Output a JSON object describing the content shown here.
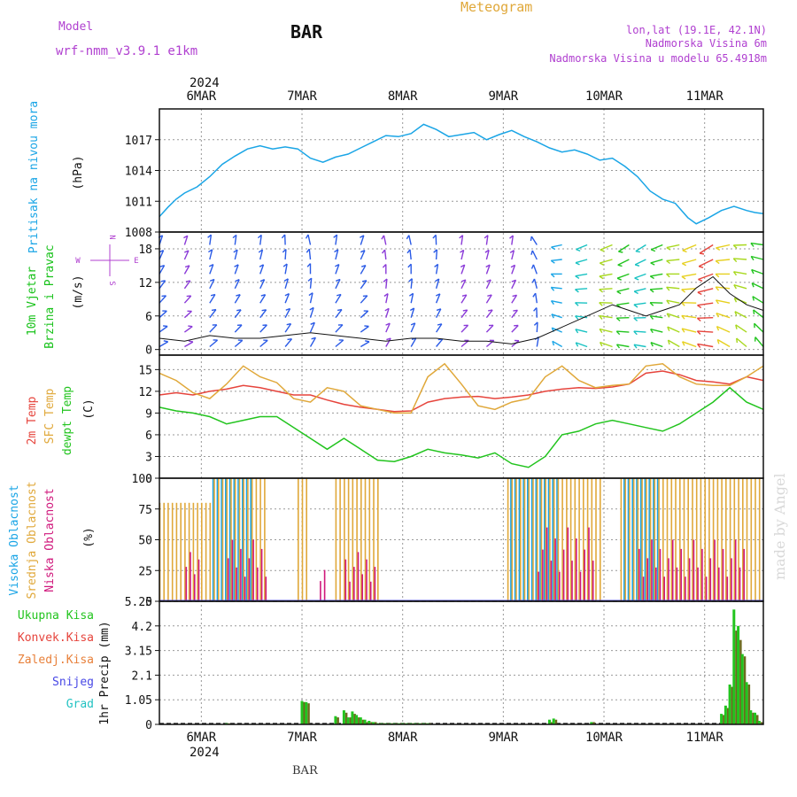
{
  "header": {
    "model_label": "Model",
    "model_name": "wrf-nmm_v3.9.1 e1km",
    "station": "BAR",
    "product": "Meteogram",
    "lonlat": "lon,lat (19.1E, 42.1N)",
    "elevation": "Nadmorska Visina 6m",
    "model_elevation": "Nadmorska Visina u modelu 65.4918m",
    "footer_station": "BAR",
    "watermark": "made by Angel"
  },
  "colors": {
    "pressure": "#1aa5e6",
    "wind_label": "#18c21a",
    "wind_dir_label": "#b040d0",
    "temp2m": "#e6443c",
    "sfc": "#e0a83a",
    "dewpt": "#22c41e",
    "cloud_high": "#1aa5e6",
    "cloud_mid": "#e0a83a",
    "cloud_low": "#d0187c",
    "precip_total": "#22c41e",
    "precip_conv": "#e6443c",
    "precip_frz": "#e8803a",
    "precip_snow": "#4848e6",
    "precip_grad": "#22c2c2",
    "purple": "#b040d0",
    "orange": "#e0a83a"
  },
  "chart_data": [
    {
      "type": "line",
      "panel": "pressure",
      "ylabel_lines": [
        "Pritisak na nivou mora",
        "(hPa)"
      ],
      "ylim": [
        1008,
        1020
      ],
      "yticks": [
        1008,
        1011,
        1014,
        1017
      ],
      "xlim": [
        0,
        144
      ],
      "x_tick_labels_top": [
        "6MAR",
        "7MAR",
        "8MAR",
        "9MAR",
        "10MAR",
        "11MAR"
      ],
      "year_label": "2024",
      "x": [
        0,
        2,
        4,
        6,
        9,
        12,
        15,
        18,
        21,
        24,
        27,
        30,
        33,
        36,
        39,
        42,
        45,
        48,
        51,
        54,
        57,
        60,
        63,
        66,
        69,
        72,
        75,
        78,
        81,
        84,
        87,
        90,
        93,
        96,
        99,
        102,
        105,
        108,
        111,
        114,
        117,
        120,
        123,
        126,
        128,
        131,
        134,
        137,
        140,
        142,
        144
      ],
      "y": [
        1009.5,
        1010.4,
        1011.2,
        1011.8,
        1012.4,
        1013.4,
        1014.6,
        1015.4,
        1016.1,
        1016.4,
        1016.1,
        1016.3,
        1016.1,
        1015.2,
        1014.8,
        1015.3,
        1015.6,
        1016.2,
        1016.8,
        1017.4,
        1017.3,
        1017.6,
        1018.5,
        1018.0,
        1017.3,
        1017.5,
        1017.7,
        1017.0,
        1017.5,
        1017.9,
        1017.3,
        1016.8,
        1016.2,
        1015.8,
        1016.0,
        1015.6,
        1015.0,
        1015.2,
        1014.4,
        1013.4,
        1012.0,
        1011.2,
        1010.8,
        1009.4,
        1008.8,
        1009.4,
        1010.1,
        1010.5,
        1010.1,
        1009.9,
        1009.8
      ]
    },
    {
      "type": "scatter",
      "panel": "wind",
      "ylabel_lines": [
        "10m Vjetar",
        "Brzina i Pravac",
        "(m/s)"
      ],
      "compass": [
        "N",
        "W",
        "E",
        "S"
      ],
      "ylim": [
        -1,
        21
      ],
      "yticks": [
        0,
        6,
        12,
        18
      ],
      "x": [
        0,
        6,
        12,
        18,
        24,
        30,
        36,
        42,
        48,
        54,
        60,
        66,
        72,
        78,
        84,
        90,
        96,
        102,
        108,
        112,
        116,
        120,
        124,
        128,
        132,
        136,
        140,
        144
      ],
      "speed": [
        2,
        1.5,
        2.5,
        2,
        2,
        2.5,
        3,
        2.5,
        2,
        1.5,
        2,
        2,
        1.5,
        1.5,
        1,
        2,
        4,
        6,
        8,
        7,
        6,
        7,
        8,
        11,
        13,
        10,
        8,
        7
      ],
      "dir_deg": [
        30,
        30,
        40,
        40,
        40,
        50,
        60,
        40,
        30,
        60,
        60,
        50,
        40,
        40,
        40,
        80,
        150,
        160,
        160,
        170,
        170,
        160,
        150,
        160,
        170,
        150,
        140,
        130
      ]
    },
    {
      "type": "line",
      "panel": "temperature",
      "ylabel_lines": [
        "2m Temp",
        "SFC Temp",
        "dewpt Temp",
        "(C)"
      ],
      "ylim": [
        0,
        17
      ],
      "yticks": [
        0,
        3,
        6,
        9,
        12,
        15
      ],
      "x": [
        0,
        4,
        8,
        12,
        16,
        20,
        24,
        28,
        32,
        36,
        40,
        44,
        48,
        52,
        56,
        60,
        64,
        68,
        72,
        76,
        80,
        84,
        88,
        92,
        96,
        100,
        104,
        108,
        112,
        116,
        120,
        124,
        128,
        132,
        136,
        140,
        144
      ],
      "series": [
        {
          "name": "2m Temp",
          "values": [
            11.5,
            11.8,
            11.5,
            12.0,
            12.3,
            12.8,
            12.5,
            12.0,
            11.5,
            11.5,
            10.8,
            10.2,
            9.8,
            9.5,
            9.2,
            9.3,
            10.5,
            11.0,
            11.2,
            11.3,
            11.0,
            11.2,
            11.5,
            12.0,
            12.3,
            12.5,
            12.4,
            12.6,
            13.0,
            14.5,
            14.8,
            14.3,
            13.5,
            13.3,
            13.0,
            14.0,
            13.5
          ]
        },
        {
          "name": "SFC Temp",
          "values": [
            14.5,
            13.5,
            11.8,
            11.0,
            13.0,
            15.5,
            14.0,
            13.2,
            11.0,
            10.5,
            12.5,
            12.0,
            10.0,
            9.5,
            9.0,
            9.0,
            14.0,
            15.8,
            13.0,
            10.0,
            9.5,
            10.5,
            11.0,
            14.0,
            15.5,
            13.5,
            12.5,
            12.8,
            13.0,
            15.5,
            15.8,
            14.0,
            13.0,
            12.8,
            12.8,
            14.0,
            15.5
          ]
        },
        {
          "name": "dewpt Temp",
          "values": [
            9.8,
            9.3,
            9.0,
            8.5,
            7.5,
            8.0,
            8.5,
            8.5,
            7.0,
            5.5,
            4.0,
            5.5,
            4.0,
            2.5,
            2.3,
            3.0,
            4.0,
            3.5,
            3.2,
            2.8,
            3.5,
            2.0,
            1.5,
            3.0,
            6.0,
            6.5,
            7.5,
            8.0,
            7.5,
            7.0,
            6.5,
            7.5,
            9.0,
            10.5,
            12.5,
            10.5,
            9.5
          ]
        }
      ]
    },
    {
      "type": "bar",
      "panel": "clouds",
      "ylabel_lines": [
        "Visoka Oblacnost",
        "Srednja Oblacnost",
        "Niska Oblacnost",
        "(%)"
      ],
      "ylim": [
        0,
        100
      ],
      "yticks": [
        0,
        25,
        50,
        75,
        100
      ],
      "series": [
        {
          "name": "Visoka Oblacnost",
          "segments": [
            [
              13,
              23,
              100
            ],
            [
              84,
              96,
              100
            ],
            [
              111,
              120,
              100
            ]
          ]
        },
        {
          "name": "Srednja Oblacnost",
          "segments": [
            [
              0,
              13,
              80
            ],
            [
              13,
              26,
              100
            ],
            [
              33,
              36,
              100
            ],
            [
              42,
              53,
              100
            ],
            [
              83,
              106,
              100
            ],
            [
              110,
              144,
              100
            ]
          ]
        },
        {
          "name": "Niska Oblacnost",
          "segments": [
            [
              6,
              10,
              40
            ],
            [
              16,
              26,
              50
            ],
            [
              38,
              40,
              30
            ],
            [
              44,
              52,
              40
            ],
            [
              90,
              104,
              60
            ],
            [
              114,
              140,
              50
            ]
          ]
        }
      ]
    },
    {
      "type": "bar",
      "panel": "precipitation",
      "ylabel_lines": [
        "1hr Precip (mm)"
      ],
      "legend": [
        "Ukupna Kisa",
        "Konvek.Kisa",
        "Zaledj.Kisa",
        "Snijeg",
        "Grad"
      ],
      "ylim": [
        0,
        5.25
      ],
      "yticks": [
        0,
        1.05,
        2.1,
        3.15,
        4.2,
        5.25
      ],
      "ytick_labels": [
        "0",
        "1.05",
        "2.1",
        "3.15",
        "4.2",
        "5.25"
      ],
      "x_tick_labels_bottom": [
        "6MAR",
        "7MAR",
        "8MAR",
        "9MAR",
        "10MAR",
        "11MAR"
      ],
      "x": [
        16,
        34,
        35,
        42,
        44,
        45,
        46,
        47,
        48,
        49,
        50,
        51,
        52,
        53,
        54,
        55,
        56,
        57,
        58,
        59,
        60,
        61,
        62,
        63,
        64,
        93,
        94,
        103,
        134,
        135,
        136,
        137,
        138,
        139,
        140,
        141,
        142,
        143
      ],
      "series": [
        {
          "name": "Ukupna Kisa",
          "values": [
            0.05,
            1.0,
            0.95,
            0.35,
            0.6,
            0.3,
            0.55,
            0.4,
            0.3,
            0.2,
            0.15,
            0.1,
            0.05,
            0.05,
            0.05,
            0.05,
            0.05,
            0.05,
            0.05,
            0.05,
            0.05,
            0.05,
            0.05,
            0.05,
            0.05,
            0.2,
            0.25,
            0.1,
            0.45,
            0.8,
            1.7,
            4.9,
            4.2,
            3.0,
            1.8,
            0.6,
            0.5,
            0.15
          ]
        },
        {
          "name": "Konvek.Kisa",
          "values": [
            0.05,
            0.95,
            0.9,
            0.3,
            0.5,
            0.3,
            0.45,
            0.3,
            0.2,
            0.1,
            0.1,
            0.1,
            0.05,
            0.05,
            0.05,
            0.05,
            0.05,
            0.05,
            0.05,
            0.05,
            0.05,
            0.05,
            0.05,
            0.05,
            0.05,
            0.1,
            0.2,
            0.1,
            0.4,
            0.7,
            1.6,
            4.0,
            3.6,
            2.9,
            1.7,
            0.5,
            0.4,
            0.1
          ]
        }
      ]
    }
  ]
}
